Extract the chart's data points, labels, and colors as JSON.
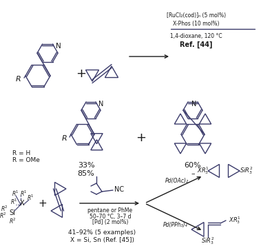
{
  "background_color": "#ffffff",
  "figsize": [
    3.79,
    3.57
  ],
  "dpi": 100,
  "top_arrow_text": [
    "[RuCl₂(cod)]ₙ (5 mol%)",
    "X-Phos (10 mol%)",
    "1,4-dioxane, 120 °C",
    "Ref. [44]"
  ],
  "r_labels": "R = H\nR = OMe",
  "yield_left": "33%\n85%",
  "yield_right": "60%\n–",
  "bottom_cond1": "pentane or PhMe",
  "bottom_cond2": "50–70 °C, 3–7 d",
  "bottom_cond3": "[Pd] (2 mol%)",
  "bottom_yield": "41–92% (5 examples)",
  "bottom_ref": "X = Si, Sn (Ref. [45])",
  "pd_oac2": "Pd(OAc)₂",
  "pd_pph3": "Pd(PPh₃)₄",
  "text_color": "#1a1a1a",
  "struct_color": "#3a3a6a",
  "lw": 1.0
}
